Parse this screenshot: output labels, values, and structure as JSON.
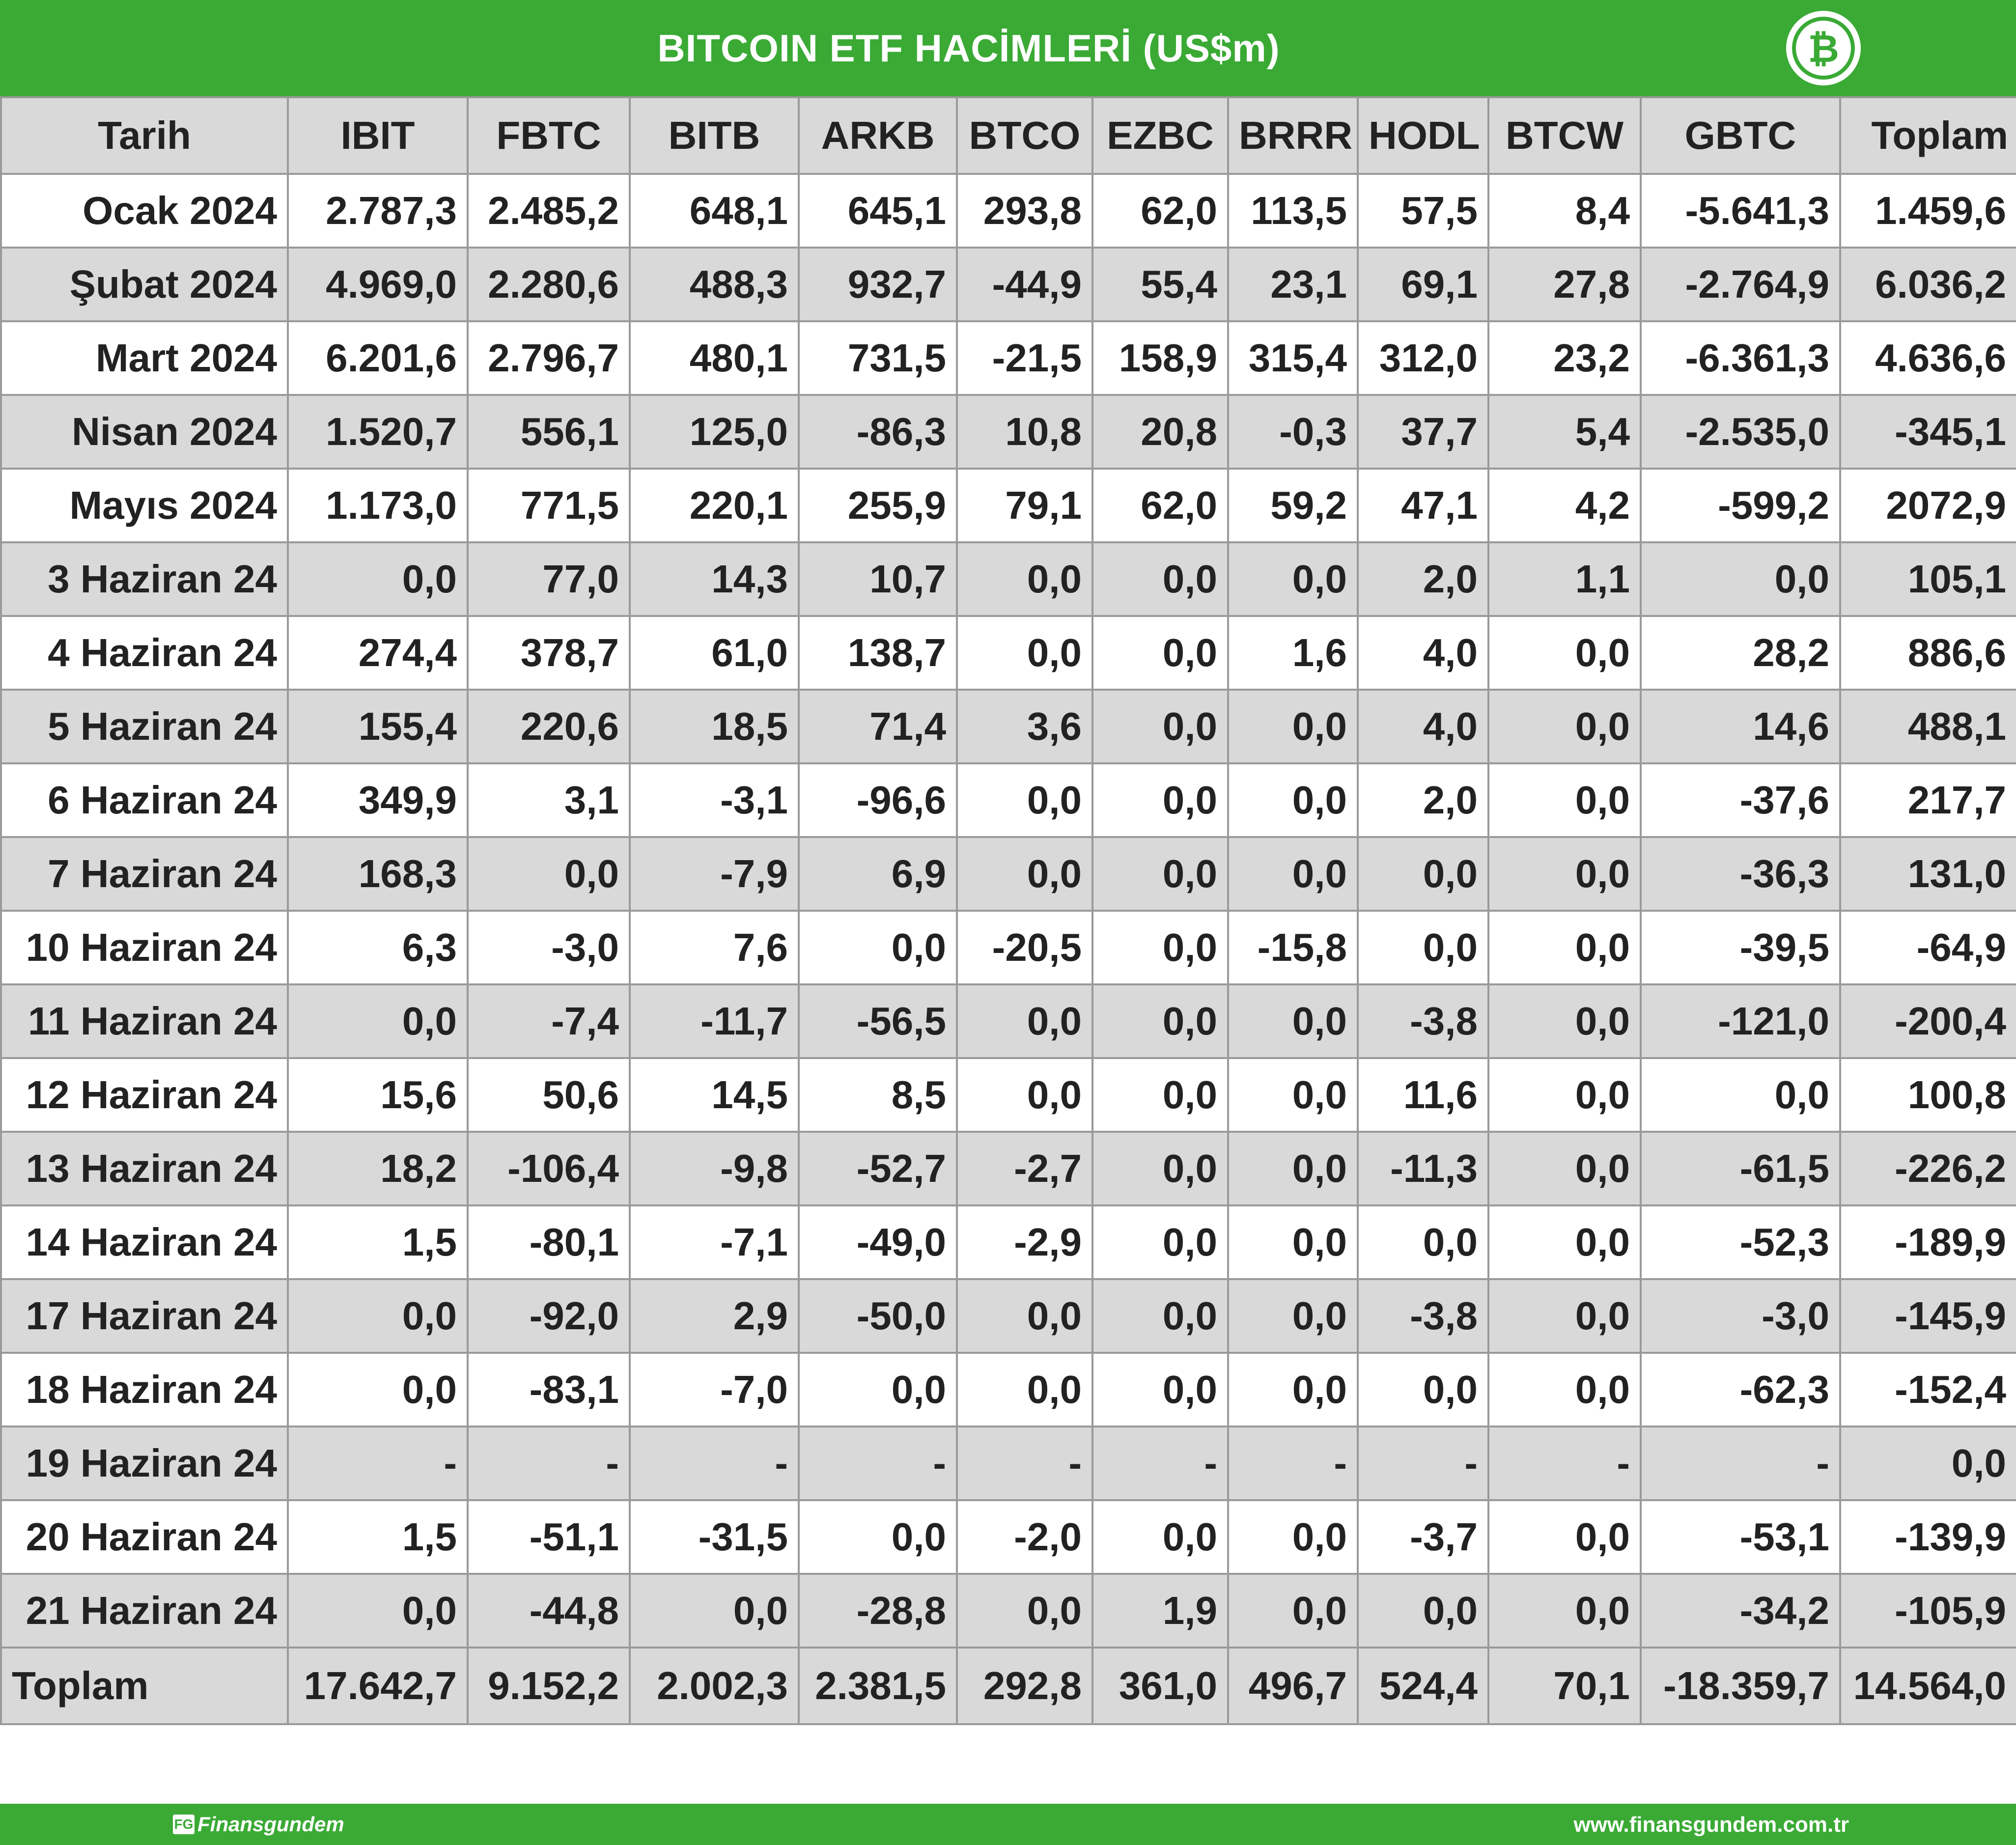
{
  "title": "BITCOIN ETF HACİMLERİ (US$m)",
  "logo_icon": "bitcoin-logo-icon",
  "colors": {
    "brand_green": "#3aaa35",
    "header_gray": "#d9d9d9",
    "border_gray": "#9a9a9a"
  },
  "table": {
    "headers": [
      "Tarih",
      "IBIT",
      "FBTC",
      "BITB",
      "ARKB",
      "BTCO",
      "EZBC",
      "BRRR",
      "HODL",
      "BTCW",
      "GBTC",
      "Toplam"
    ],
    "rows": [
      [
        "Ocak 2024",
        "2.787,3",
        "2.485,2",
        "648,1",
        "645,1",
        "293,8",
        "62,0",
        "113,5",
        "57,5",
        "8,4",
        "-5.641,3",
        "1.459,6"
      ],
      [
        "Şubat 2024",
        "4.969,0",
        "2.280,6",
        "488,3",
        "932,7",
        "-44,9",
        "55,4",
        "23,1",
        "69,1",
        "27,8",
        "-2.764,9",
        "6.036,2"
      ],
      [
        "Mart 2024",
        "6.201,6",
        "2.796,7",
        "480,1",
        "731,5",
        "-21,5",
        "158,9",
        "315,4",
        "312,0",
        "23,2",
        "-6.361,3",
        "4.636,6"
      ],
      [
        "Nisan 2024",
        "1.520,7",
        "556,1",
        "125,0",
        "-86,3",
        "10,8",
        "20,8",
        "-0,3",
        "37,7",
        "5,4",
        "-2.535,0",
        "-345,1"
      ],
      [
        "Mayıs 2024",
        "1.173,0",
        "771,5",
        "220,1",
        "255,9",
        "79,1",
        "62,0",
        "59,2",
        "47,1",
        "4,2",
        "-599,2",
        "2072,9"
      ],
      [
        "3 Haziran 24",
        "0,0",
        "77,0",
        "14,3",
        "10,7",
        "0,0",
        "0,0",
        "0,0",
        "2,0",
        "1,1",
        "0,0",
        "105,1"
      ],
      [
        "4 Haziran 24",
        "274,4",
        "378,7",
        "61,0",
        "138,7",
        "0,0",
        "0,0",
        "1,6",
        "4,0",
        "0,0",
        "28,2",
        "886,6"
      ],
      [
        "5 Haziran 24",
        "155,4",
        "220,6",
        "18,5",
        "71,4",
        "3,6",
        "0,0",
        "0,0",
        "4,0",
        "0,0",
        "14,6",
        "488,1"
      ],
      [
        "6 Haziran 24",
        "349,9",
        "3,1",
        "-3,1",
        "-96,6",
        "0,0",
        "0,0",
        "0,0",
        "2,0",
        "0,0",
        "-37,6",
        "217,7"
      ],
      [
        "7 Haziran 24",
        "168,3",
        "0,0",
        "-7,9",
        "6,9",
        "0,0",
        "0,0",
        "0,0",
        "0,0",
        "0,0",
        "-36,3",
        "131,0"
      ],
      [
        "10 Haziran 24",
        "6,3",
        "-3,0",
        "7,6",
        "0,0",
        "-20,5",
        "0,0",
        "-15,8",
        "0,0",
        "0,0",
        "-39,5",
        "-64,9"
      ],
      [
        "11 Haziran 24",
        "0,0",
        "-7,4",
        "-11,7",
        "-56,5",
        "0,0",
        "0,0",
        "0,0",
        "-3,8",
        "0,0",
        "-121,0",
        "-200,4"
      ],
      [
        "12 Haziran 24",
        "15,6",
        "50,6",
        "14,5",
        "8,5",
        "0,0",
        "0,0",
        "0,0",
        "11,6",
        "0,0",
        "0,0",
        "100,8"
      ],
      [
        "13 Haziran 24",
        "18,2",
        "-106,4",
        "-9,8",
        "-52,7",
        "-2,7",
        "0,0",
        "0,0",
        "-11,3",
        "0,0",
        "-61,5",
        "-226,2"
      ],
      [
        "14 Haziran 24",
        "1,5",
        "-80,1",
        "-7,1",
        "-49,0",
        "-2,9",
        "0,0",
        "0,0",
        "0,0",
        "0,0",
        "-52,3",
        "-189,9"
      ],
      [
        "17 Haziran 24",
        "0,0",
        "-92,0",
        "2,9",
        "-50,0",
        "0,0",
        "0,0",
        "0,0",
        "-3,8",
        "0,0",
        "-3,0",
        "-145,9"
      ],
      [
        "18 Haziran 24",
        "0,0",
        "-83,1",
        "-7,0",
        "0,0",
        "0,0",
        "0,0",
        "0,0",
        "0,0",
        "0,0",
        "-62,3",
        "-152,4"
      ],
      [
        "19 Haziran 24",
        "-",
        "-",
        "-",
        "-",
        "-",
        "-",
        "-",
        "-",
        "-",
        "-",
        "0,0"
      ],
      [
        "20 Haziran 24",
        "1,5",
        "-51,1",
        "-31,5",
        "0,0",
        "-2,0",
        "0,0",
        "0,0",
        "-3,7",
        "0,0",
        "-53,1",
        "-139,9"
      ],
      [
        "21 Haziran 24",
        "0,0",
        "-44,8",
        "0,0",
        "-28,8",
        "0,0",
        "1,9",
        "0,0",
        "0,0",
        "0,0",
        "-34,2",
        "-105,9"
      ]
    ],
    "total_row": [
      "Toplam",
      "17.642,7",
      "9.152,2",
      "2.002,3",
      "2.381,5",
      "292,8",
      "361,0",
      "496,7",
      "524,4",
      "70,1",
      "-18.359,7",
      "14.564,0"
    ]
  },
  "footer": {
    "brand_badge": "FG",
    "brand_name": "Finansgundem",
    "url": "www.finansgundem.com.tr"
  }
}
